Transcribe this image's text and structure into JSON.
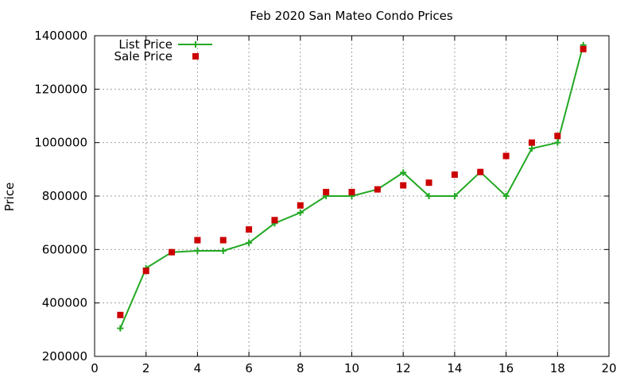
{
  "chart_data": {
    "type": "line",
    "title": "Feb 2020 San Mateo Condo Prices",
    "xlabel": "",
    "ylabel": "Price",
    "xlim": [
      0,
      20
    ],
    "ylim": [
      200000,
      1400000
    ],
    "xticks": [
      0,
      2,
      4,
      6,
      8,
      10,
      12,
      14,
      16,
      18,
      20
    ],
    "yticks": [
      200000,
      400000,
      600000,
      800000,
      1000000,
      1200000,
      1400000
    ],
    "grid": true,
    "legend_position": "top-left",
    "series": [
      {
        "name": "List Price",
        "style": "line-plus",
        "color": "#22a822",
        "x": [
          1,
          2,
          3,
          4,
          5,
          6,
          7,
          8,
          9,
          10,
          11,
          12,
          13,
          14,
          15,
          16,
          17,
          18,
          19
        ],
        "y": [
          305000,
          530000,
          590000,
          595000,
          595000,
          625000,
          698000,
          738000,
          800000,
          800000,
          825000,
          888000,
          800000,
          800000,
          890000,
          800000,
          978000,
          1000000,
          1365000
        ]
      },
      {
        "name": "Sale Price",
        "style": "square-points",
        "color": "#cc0000",
        "x": [
          1,
          2,
          3,
          4,
          5,
          6,
          7,
          8,
          9,
          10,
          11,
          12,
          13,
          14,
          15,
          16,
          17,
          18,
          19
        ],
        "y": [
          355000,
          520000,
          590000,
          635000,
          635000,
          675000,
          710000,
          765000,
          815000,
          815000,
          825000,
          840000,
          850000,
          880000,
          890000,
          950000,
          1000000,
          1025000,
          1350000
        ]
      }
    ]
  }
}
